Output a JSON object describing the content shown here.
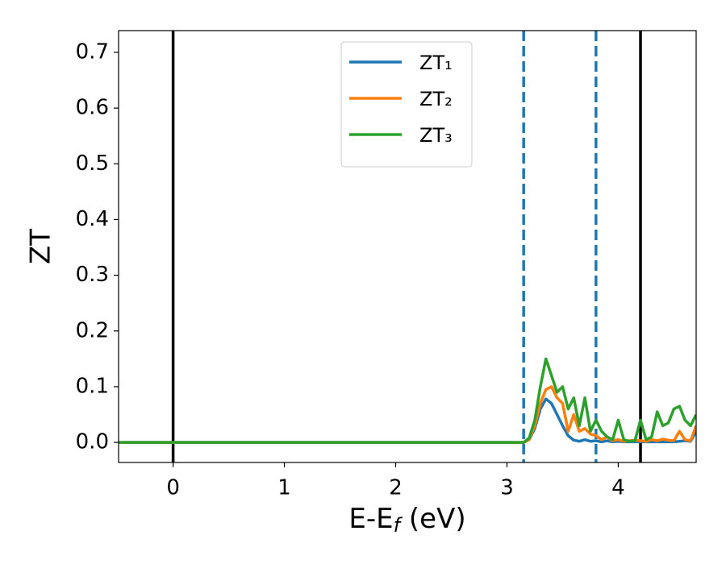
{
  "chart_data": {
    "type": "line",
    "xlabel": [
      "E-E",
      "f",
      " (eV)"
    ],
    "ylabel": "ZT",
    "x": [
      -0.49,
      3.0,
      3.1,
      3.15,
      3.2,
      3.25,
      3.3,
      3.35,
      3.4,
      3.45,
      3.5,
      3.55,
      3.6,
      3.65,
      3.7,
      3.75,
      3.8,
      3.85,
      3.9,
      3.95,
      4.0,
      4.05,
      4.1,
      4.15,
      4.2,
      4.25,
      4.3,
      4.35,
      4.4,
      4.45,
      4.5,
      4.55,
      4.6,
      4.65,
      4.7
    ],
    "series": [
      {
        "name": "ZT₁",
        "color": "#1f77b4",
        "values": [
          0,
          0,
          0,
          0,
          0.005,
          0.025,
          0.06,
          0.078,
          0.07,
          0.05,
          0.03,
          0.012,
          0.004,
          0.002,
          0.005,
          0.002,
          0.003,
          0.001,
          0.003,
          0.001,
          0.002,
          0.001,
          0.001,
          0.001,
          0.001,
          0.001,
          0.001,
          0.001,
          0.001,
          0.001,
          0.001,
          0.002,
          0.003,
          0.002,
          0.02
        ]
      },
      {
        "name": "ZT₂",
        "color": "#ff7f0e",
        "values": [
          0,
          0,
          0,
          0,
          0.005,
          0.03,
          0.07,
          0.095,
          0.1,
          0.08,
          0.07,
          0.02,
          0.05,
          0.02,
          0.025,
          0.015,
          0.012,
          0.005,
          0.01,
          0.003,
          0.005,
          0.002,
          0.003,
          0.004,
          0.003,
          0.002,
          0.005,
          0.003,
          0.006,
          0.004,
          0.003,
          0.02,
          0.005,
          0.003,
          0.03
        ]
      },
      {
        "name": "ZT₃",
        "color": "#2ca02c",
        "values": [
          0,
          0,
          0,
          0,
          0.008,
          0.04,
          0.1,
          0.15,
          0.12,
          0.09,
          0.1,
          0.06,
          0.08,
          0.03,
          0.08,
          0.02,
          0.04,
          0.02,
          0.01,
          0.005,
          0.04,
          0.005,
          0.002,
          0.003,
          0.04,
          0.005,
          0.01,
          0.055,
          0.03,
          0.035,
          0.06,
          0.065,
          0.04,
          0.03,
          0.05
        ]
      }
    ],
    "vlines": [
      {
        "x": 0,
        "color": "#000000",
        "style": "solid"
      },
      {
        "x": 4.2,
        "color": "#000000",
        "style": "solid"
      },
      {
        "x": 3.15,
        "color": "#1f77b4",
        "style": "dashed"
      },
      {
        "x": 3.8,
        "color": "#1f77b4",
        "style": "dashed"
      }
    ],
    "xlim": [
      -0.49,
      4.7
    ],
    "ylim": [
      -0.036,
      0.739
    ],
    "xticks": [
      0,
      1,
      2,
      3,
      4
    ],
    "yticks": [
      {
        "value": 0,
        "label": "0.0"
      },
      0.1,
      0.2,
      0.3,
      0.4,
      0.5,
      0.6,
      0.7
    ],
    "legend": "upper center"
  }
}
